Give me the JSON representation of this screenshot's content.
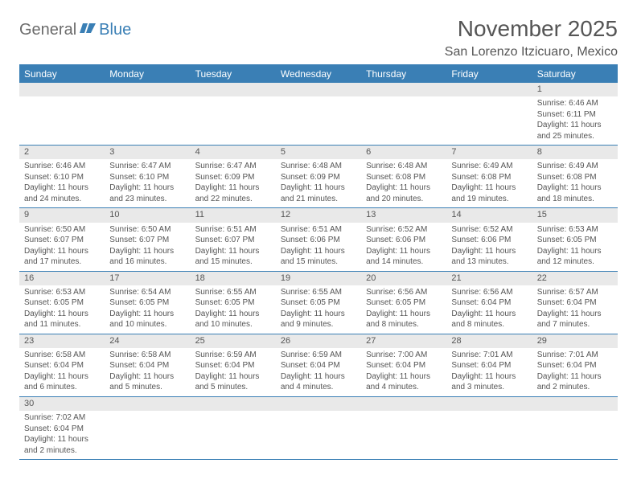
{
  "logo": {
    "part1": "General",
    "part2": "Blue"
  },
  "title": "November 2025",
  "location": "San Lorenzo Itzicuaro, Mexico",
  "colors": {
    "brand_blue": "#3a7fb5",
    "header_gray": "#e9e9e9",
    "text_gray": "#555555",
    "bg": "#ffffff"
  },
  "weekdays": [
    "Sunday",
    "Monday",
    "Tuesday",
    "Wednesday",
    "Thursday",
    "Friday",
    "Saturday"
  ],
  "weeks": [
    [
      {
        "n": "",
        "empty": true
      },
      {
        "n": "",
        "empty": true
      },
      {
        "n": "",
        "empty": true
      },
      {
        "n": "",
        "empty": true
      },
      {
        "n": "",
        "empty": true
      },
      {
        "n": "",
        "empty": true
      },
      {
        "n": "1",
        "sunrise": "Sunrise: 6:46 AM",
        "sunset": "Sunset: 6:11 PM",
        "daylight": "Daylight: 11 hours and 25 minutes."
      }
    ],
    [
      {
        "n": "2",
        "sunrise": "Sunrise: 6:46 AM",
        "sunset": "Sunset: 6:10 PM",
        "daylight": "Daylight: 11 hours and 24 minutes."
      },
      {
        "n": "3",
        "sunrise": "Sunrise: 6:47 AM",
        "sunset": "Sunset: 6:10 PM",
        "daylight": "Daylight: 11 hours and 23 minutes."
      },
      {
        "n": "4",
        "sunrise": "Sunrise: 6:47 AM",
        "sunset": "Sunset: 6:09 PM",
        "daylight": "Daylight: 11 hours and 22 minutes."
      },
      {
        "n": "5",
        "sunrise": "Sunrise: 6:48 AM",
        "sunset": "Sunset: 6:09 PM",
        "daylight": "Daylight: 11 hours and 21 minutes."
      },
      {
        "n": "6",
        "sunrise": "Sunrise: 6:48 AM",
        "sunset": "Sunset: 6:08 PM",
        "daylight": "Daylight: 11 hours and 20 minutes."
      },
      {
        "n": "7",
        "sunrise": "Sunrise: 6:49 AM",
        "sunset": "Sunset: 6:08 PM",
        "daylight": "Daylight: 11 hours and 19 minutes."
      },
      {
        "n": "8",
        "sunrise": "Sunrise: 6:49 AM",
        "sunset": "Sunset: 6:08 PM",
        "daylight": "Daylight: 11 hours and 18 minutes."
      }
    ],
    [
      {
        "n": "9",
        "sunrise": "Sunrise: 6:50 AM",
        "sunset": "Sunset: 6:07 PM",
        "daylight": "Daylight: 11 hours and 17 minutes."
      },
      {
        "n": "10",
        "sunrise": "Sunrise: 6:50 AM",
        "sunset": "Sunset: 6:07 PM",
        "daylight": "Daylight: 11 hours and 16 minutes."
      },
      {
        "n": "11",
        "sunrise": "Sunrise: 6:51 AM",
        "sunset": "Sunset: 6:07 PM",
        "daylight": "Daylight: 11 hours and 15 minutes."
      },
      {
        "n": "12",
        "sunrise": "Sunrise: 6:51 AM",
        "sunset": "Sunset: 6:06 PM",
        "daylight": "Daylight: 11 hours and 15 minutes."
      },
      {
        "n": "13",
        "sunrise": "Sunrise: 6:52 AM",
        "sunset": "Sunset: 6:06 PM",
        "daylight": "Daylight: 11 hours and 14 minutes."
      },
      {
        "n": "14",
        "sunrise": "Sunrise: 6:52 AM",
        "sunset": "Sunset: 6:06 PM",
        "daylight": "Daylight: 11 hours and 13 minutes."
      },
      {
        "n": "15",
        "sunrise": "Sunrise: 6:53 AM",
        "sunset": "Sunset: 6:05 PM",
        "daylight": "Daylight: 11 hours and 12 minutes."
      }
    ],
    [
      {
        "n": "16",
        "sunrise": "Sunrise: 6:53 AM",
        "sunset": "Sunset: 6:05 PM",
        "daylight": "Daylight: 11 hours and 11 minutes."
      },
      {
        "n": "17",
        "sunrise": "Sunrise: 6:54 AM",
        "sunset": "Sunset: 6:05 PM",
        "daylight": "Daylight: 11 hours and 10 minutes."
      },
      {
        "n": "18",
        "sunrise": "Sunrise: 6:55 AM",
        "sunset": "Sunset: 6:05 PM",
        "daylight": "Daylight: 11 hours and 10 minutes."
      },
      {
        "n": "19",
        "sunrise": "Sunrise: 6:55 AM",
        "sunset": "Sunset: 6:05 PM",
        "daylight": "Daylight: 11 hours and 9 minutes."
      },
      {
        "n": "20",
        "sunrise": "Sunrise: 6:56 AM",
        "sunset": "Sunset: 6:05 PM",
        "daylight": "Daylight: 11 hours and 8 minutes."
      },
      {
        "n": "21",
        "sunrise": "Sunrise: 6:56 AM",
        "sunset": "Sunset: 6:04 PM",
        "daylight": "Daylight: 11 hours and 8 minutes."
      },
      {
        "n": "22",
        "sunrise": "Sunrise: 6:57 AM",
        "sunset": "Sunset: 6:04 PM",
        "daylight": "Daylight: 11 hours and 7 minutes."
      }
    ],
    [
      {
        "n": "23",
        "sunrise": "Sunrise: 6:58 AM",
        "sunset": "Sunset: 6:04 PM",
        "daylight": "Daylight: 11 hours and 6 minutes."
      },
      {
        "n": "24",
        "sunrise": "Sunrise: 6:58 AM",
        "sunset": "Sunset: 6:04 PM",
        "daylight": "Daylight: 11 hours and 5 minutes."
      },
      {
        "n": "25",
        "sunrise": "Sunrise: 6:59 AM",
        "sunset": "Sunset: 6:04 PM",
        "daylight": "Daylight: 11 hours and 5 minutes."
      },
      {
        "n": "26",
        "sunrise": "Sunrise: 6:59 AM",
        "sunset": "Sunset: 6:04 PM",
        "daylight": "Daylight: 11 hours and 4 minutes."
      },
      {
        "n": "27",
        "sunrise": "Sunrise: 7:00 AM",
        "sunset": "Sunset: 6:04 PM",
        "daylight": "Daylight: 11 hours and 4 minutes."
      },
      {
        "n": "28",
        "sunrise": "Sunrise: 7:01 AM",
        "sunset": "Sunset: 6:04 PM",
        "daylight": "Daylight: 11 hours and 3 minutes."
      },
      {
        "n": "29",
        "sunrise": "Sunrise: 7:01 AM",
        "sunset": "Sunset: 6:04 PM",
        "daylight": "Daylight: 11 hours and 2 minutes."
      }
    ],
    [
      {
        "n": "30",
        "sunrise": "Sunrise: 7:02 AM",
        "sunset": "Sunset: 6:04 PM",
        "daylight": "Daylight: 11 hours and 2 minutes."
      },
      {
        "n": "",
        "empty": true
      },
      {
        "n": "",
        "empty": true
      },
      {
        "n": "",
        "empty": true
      },
      {
        "n": "",
        "empty": true
      },
      {
        "n": "",
        "empty": true
      },
      {
        "n": "",
        "empty": true
      }
    ]
  ]
}
